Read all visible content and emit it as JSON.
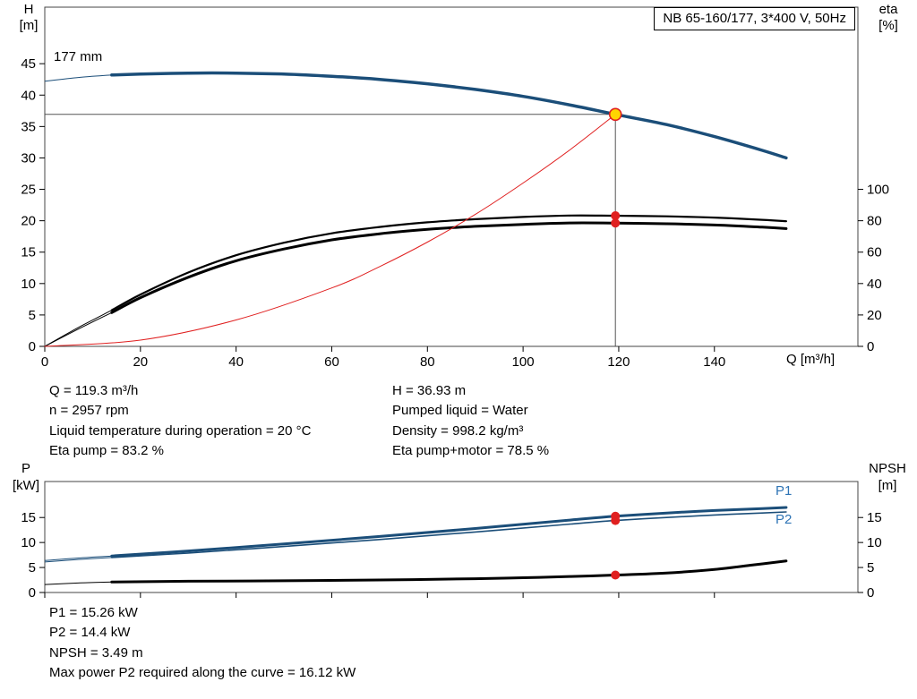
{
  "meta": {
    "title_box": "NB 65-160/177, 3*400 V, 50Hz",
    "impeller_label": "177 mm"
  },
  "colors": {
    "curve_blue": "#1b4e79",
    "label_blue": "#2e74b5",
    "red": "#e02020",
    "duty_fill": "#ffd400",
    "black": "#000000",
    "frame": "#444444",
    "ref_line": "#555555"
  },
  "chart_data": [
    {
      "type": "line",
      "name": "head-eta-chart",
      "title": "",
      "xlim": [
        0,
        170
      ],
      "ylim_left": [
        0,
        54
      ],
      "ylim_right": [
        0,
        216
      ],
      "left_axis": {
        "title_1": "H",
        "title_2": "[m]",
        "ticks": [
          0,
          5,
          10,
          15,
          20,
          25,
          30,
          35,
          40,
          45
        ]
      },
      "right_axis": {
        "title_1": "eta",
        "title_2": "[%]",
        "ticks": [
          0,
          20,
          40,
          60,
          80,
          100
        ]
      },
      "x_axis": {
        "title": "Q [m³/h]",
        "ticks": [
          0,
          20,
          40,
          60,
          80,
          100,
          120,
          140
        ],
        "show_labels": true
      },
      "series": [
        {
          "name": "head-curve",
          "axis": "left",
          "color": "curve_blue",
          "width": 3.5,
          "lead_points": [
            [
              0,
              42.2
            ],
            [
              7,
              42.8
            ],
            [
              14,
              43.2
            ]
          ],
          "points": [
            [
              14,
              43.2
            ],
            [
              20,
              43.35
            ],
            [
              30,
              43.5
            ],
            [
              40,
              43.5
            ],
            [
              50,
              43.35
            ],
            [
              60,
              43.0
            ],
            [
              70,
              42.5
            ],
            [
              80,
              41.8
            ],
            [
              90,
              40.9
            ],
            [
              100,
              39.8
            ],
            [
              110,
              38.4
            ],
            [
              119.3,
              36.93
            ],
            [
              130,
              35.3
            ],
            [
              140,
              33.4
            ],
            [
              150,
              31.2
            ],
            [
              155,
              30.0
            ]
          ]
        },
        {
          "name": "eta-pump-curve",
          "axis": "right",
          "color": "black",
          "width": 2.2,
          "lead_points": [
            [
              0,
              0
            ],
            [
              7,
              12
            ],
            [
              14,
              23
            ]
          ],
          "points": [
            [
              14,
              23
            ],
            [
              20,
              33
            ],
            [
              30,
              47
            ],
            [
              40,
              58
            ],
            [
              50,
              66
            ],
            [
              60,
              72
            ],
            [
              70,
              76
            ],
            [
              80,
              79
            ],
            [
              90,
              81
            ],
            [
              100,
              82.4
            ],
            [
              110,
              83.3
            ],
            [
              119.3,
              83.2
            ],
            [
              130,
              82.8
            ],
            [
              140,
              82
            ],
            [
              150,
              80.6
            ],
            [
              155,
              79.7
            ]
          ]
        },
        {
          "name": "eta-pump-motor-curve",
          "axis": "right",
          "color": "black",
          "width": 3,
          "lead_points": [
            [
              0,
              0
            ],
            [
              7,
              11
            ],
            [
              14,
              21.5
            ]
          ],
          "points": [
            [
              14,
              21.5
            ],
            [
              20,
              31
            ],
            [
              30,
              44
            ],
            [
              40,
              54.5
            ],
            [
              50,
              62
            ],
            [
              60,
              67.8
            ],
            [
              70,
              71.7
            ],
            [
              80,
              74.5
            ],
            [
              90,
              76.4
            ],
            [
              100,
              77.7
            ],
            [
              110,
              78.6
            ],
            [
              119.3,
              78.5
            ],
            [
              130,
              78.1
            ],
            [
              140,
              77.3
            ],
            [
              150,
              75.9
            ],
            [
              155,
              75.0
            ]
          ]
        },
        {
          "name": "system-curve",
          "axis": "left",
          "color": "red",
          "width": 1,
          "points": [
            [
              0,
              0
            ],
            [
              20,
              1.0
            ],
            [
              40,
              4.2
            ],
            [
              60,
              9.3
            ],
            [
              70,
              12.7
            ],
            [
              80,
              16.6
            ],
            [
              90,
              21.0
            ],
            [
              100,
              26.0
            ],
            [
              110,
              31.4
            ],
            [
              119.3,
              36.93
            ]
          ]
        }
      ],
      "duty": {
        "q": 119.3,
        "h": 36.93,
        "eta_points": [
          83.2,
          78.5
        ]
      }
    },
    {
      "type": "line",
      "name": "power-npsh-chart",
      "title": "",
      "xlim": [
        0,
        170
      ],
      "ylim_left": [
        0,
        22.2
      ],
      "ylim_right": [
        0,
        22.2
      ],
      "left_axis": {
        "title_1": "P",
        "title_2": "[kW]",
        "ticks": [
          0,
          5,
          10,
          15
        ]
      },
      "right_axis": {
        "title_1": "NPSH",
        "title_2": "[m]",
        "ticks": [
          0,
          5,
          10,
          15
        ]
      },
      "x_axis": {
        "ticks": [
          0,
          20,
          40,
          60,
          80,
          100,
          120,
          140
        ],
        "show_labels": false
      },
      "series": [
        {
          "name": "p1-curve",
          "axis": "left",
          "color": "curve_blue",
          "width": 3,
          "lead_points": [
            [
              0,
              6.4
            ],
            [
              7,
              6.9
            ],
            [
              14,
              7.3
            ]
          ],
          "points": [
            [
              14,
              7.3
            ],
            [
              30,
              8.3
            ],
            [
              50,
              9.7
            ],
            [
              70,
              11.2
            ],
            [
              90,
              12.8
            ],
            [
              110,
              14.5
            ],
            [
              119.3,
              15.26
            ],
            [
              130,
              15.9
            ],
            [
              140,
              16.4
            ],
            [
              150,
              16.8
            ],
            [
              155,
              17.0
            ]
          ]
        },
        {
          "name": "p2-curve",
          "axis": "left",
          "color": "curve_blue",
          "width": 1.6,
          "lead_points": [
            [
              0,
              6.1
            ],
            [
              7,
              6.6
            ],
            [
              14,
              7.0
            ]
          ],
          "points": [
            [
              14,
              7.0
            ],
            [
              30,
              7.9
            ],
            [
              50,
              9.2
            ],
            [
              70,
              10.6
            ],
            [
              90,
              12.1
            ],
            [
              110,
              13.7
            ],
            [
              119.3,
              14.4
            ],
            [
              130,
              15.0
            ],
            [
              140,
              15.5
            ],
            [
              150,
              15.9
            ],
            [
              155,
              16.12
            ]
          ]
        },
        {
          "name": "npsh-curve",
          "axis": "right",
          "color": "black",
          "width": 3,
          "lead_points": [
            [
              0,
              1.6
            ],
            [
              7,
              1.9
            ],
            [
              14,
              2.1
            ]
          ],
          "points": [
            [
              14,
              2.1
            ],
            [
              30,
              2.25
            ],
            [
              50,
              2.35
            ],
            [
              70,
              2.5
            ],
            [
              90,
              2.75
            ],
            [
              100,
              2.95
            ],
            [
              110,
              3.2
            ],
            [
              119.3,
              3.49
            ],
            [
              130,
              3.9
            ],
            [
              140,
              4.6
            ],
            [
              148,
              5.5
            ],
            [
              155,
              6.3
            ]
          ]
        }
      ],
      "labels": {
        "p1": "P1",
        "p2": "P2"
      },
      "duty": {
        "q": 119.3,
        "p_points": [
          15.26,
          14.4
        ],
        "npsh": 3.49
      }
    }
  ],
  "info_top": {
    "left": [
      "Q = 119.3 m³/h",
      "n = 2957 rpm",
      "Liquid temperature during operation = 20 °C",
      "Eta pump = 83.2 %"
    ],
    "right": [
      "H = 36.93 m",
      "Pumped liquid = Water",
      "Density = 998.2 kg/m³",
      "Eta pump+motor = 78.5 %"
    ]
  },
  "info_bottom": [
    "P1 = 15.26 kW",
    "P2 = 14.4 kW",
    "NPSH = 3.49 m",
    "Max power P2 required along the curve = 16.12 kW"
  ]
}
